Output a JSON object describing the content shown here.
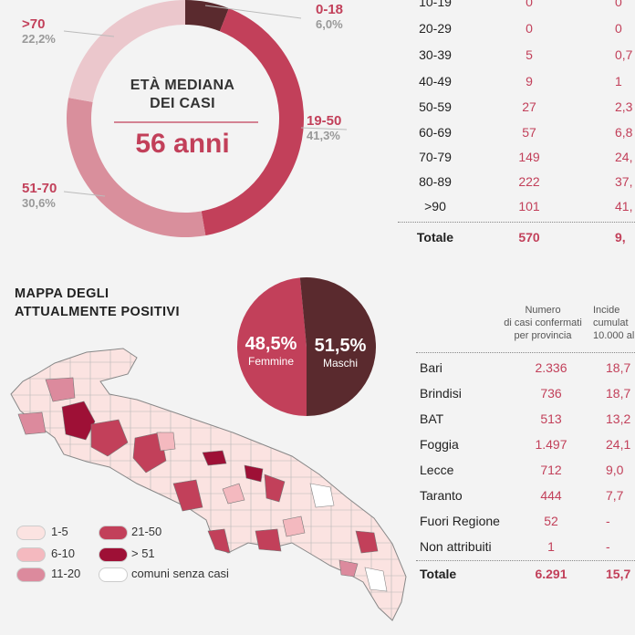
{
  "donut": {
    "center_title_1": "ETÀ MEDIANA",
    "center_title_2": "DEI CASI",
    "center_value": "56 anni",
    "labels": [
      {
        "name": "0-18",
        "pct": "6,0%"
      },
      {
        "name": "19-50",
        "pct": "41,3%"
      },
      {
        "name": "51-70",
        "pct": "30,6%"
      },
      {
        "name": ">70",
        "pct": "22,2%"
      }
    ]
  },
  "age_table": {
    "rows": [
      {
        "age": "10-19",
        "cases": "0",
        "pct": "0"
      },
      {
        "age": "20-29",
        "cases": "0",
        "pct": "0"
      },
      {
        "age": "30-39",
        "cases": "5",
        "pct": "0,7"
      },
      {
        "age": "40-49",
        "cases": "9",
        "pct": "1"
      },
      {
        "age": "50-59",
        "cases": "27",
        "pct": "2,3"
      },
      {
        "age": "60-69",
        "cases": "57",
        "pct": "6,8"
      },
      {
        "age": "70-79",
        "cases": "149",
        "pct": "24,"
      },
      {
        "age": "80-89",
        "cases": "222",
        "pct": "37,"
      },
      {
        "age": ">90",
        "cases": "101",
        "pct": "41,"
      }
    ],
    "total": {
      "label": "Totale",
      "cases": "570",
      "pct": "9,"
    }
  },
  "map": {
    "title_1": "MAPPA DEGLI",
    "title_2": "ATTUALMENTE POSITIVI",
    "legend": [
      {
        "label": "1-5",
        "color": "#fbe3e1"
      },
      {
        "label": "6-10",
        "color": "#f4b9bf"
      },
      {
        "label": "11-20",
        "color": "#dc8a9d"
      },
      {
        "label": "21-50",
        "color": "#c2405a"
      },
      {
        "label": "> 51",
        "color": "#9e1036"
      },
      {
        "label": "comuni senza casi",
        "color": "#ffffff"
      }
    ]
  },
  "sex": {
    "female_pct": "48,5%",
    "female_label": "Femmine",
    "male_pct": "51,5%",
    "male_label": "Maschi"
  },
  "province_table": {
    "header_col2": [
      "Numero",
      "di casi confermati",
      "per provincia"
    ],
    "header_col3": [
      "Incide",
      "cumulat",
      "10.000 al"
    ],
    "rows": [
      {
        "name": "Bari",
        "cases": "2.336",
        "incidence": "18,7"
      },
      {
        "name": "Brindisi",
        "cases": "736",
        "incidence": "18,7"
      },
      {
        "name": "BAT",
        "cases": "513",
        "incidence": "13,2"
      },
      {
        "name": "Foggia",
        "cases": "1.497",
        "incidence": "24,1"
      },
      {
        "name": "Lecce",
        "cases": "712",
        "incidence": "9,0"
      },
      {
        "name": "Taranto",
        "cases": "444",
        "incidence": "7,7"
      },
      {
        "name": "Fuori Regione",
        "cases": "52",
        "incidence": "-"
      },
      {
        "name": "Non attribuiti",
        "cases": "1",
        "incidence": "-"
      }
    ],
    "total": {
      "name": "Totale",
      "cases": "6.291",
      "incidence": "15,7"
    }
  },
  "colors": {
    "accent": "#c2405a",
    "dark": "#5a2a2e"
  },
  "chart_data": [
    {
      "type": "pie",
      "categories": [
        "0-18",
        "19-50",
        "51-70",
        ">70"
      ],
      "values": [
        6.0,
        41.3,
        30.6,
        22.2
      ],
      "colors": [
        "#5a2a2e",
        "#c2405a",
        "#d98f9c",
        "#ebc7cc"
      ]
    },
    {
      "type": "pie",
      "categories": [
        "Femmine",
        "Maschi"
      ],
      "values": [
        48.5,
        51.5
      ],
      "colors": [
        "#c2405a",
        "#5a2a2e"
      ]
    }
  ]
}
